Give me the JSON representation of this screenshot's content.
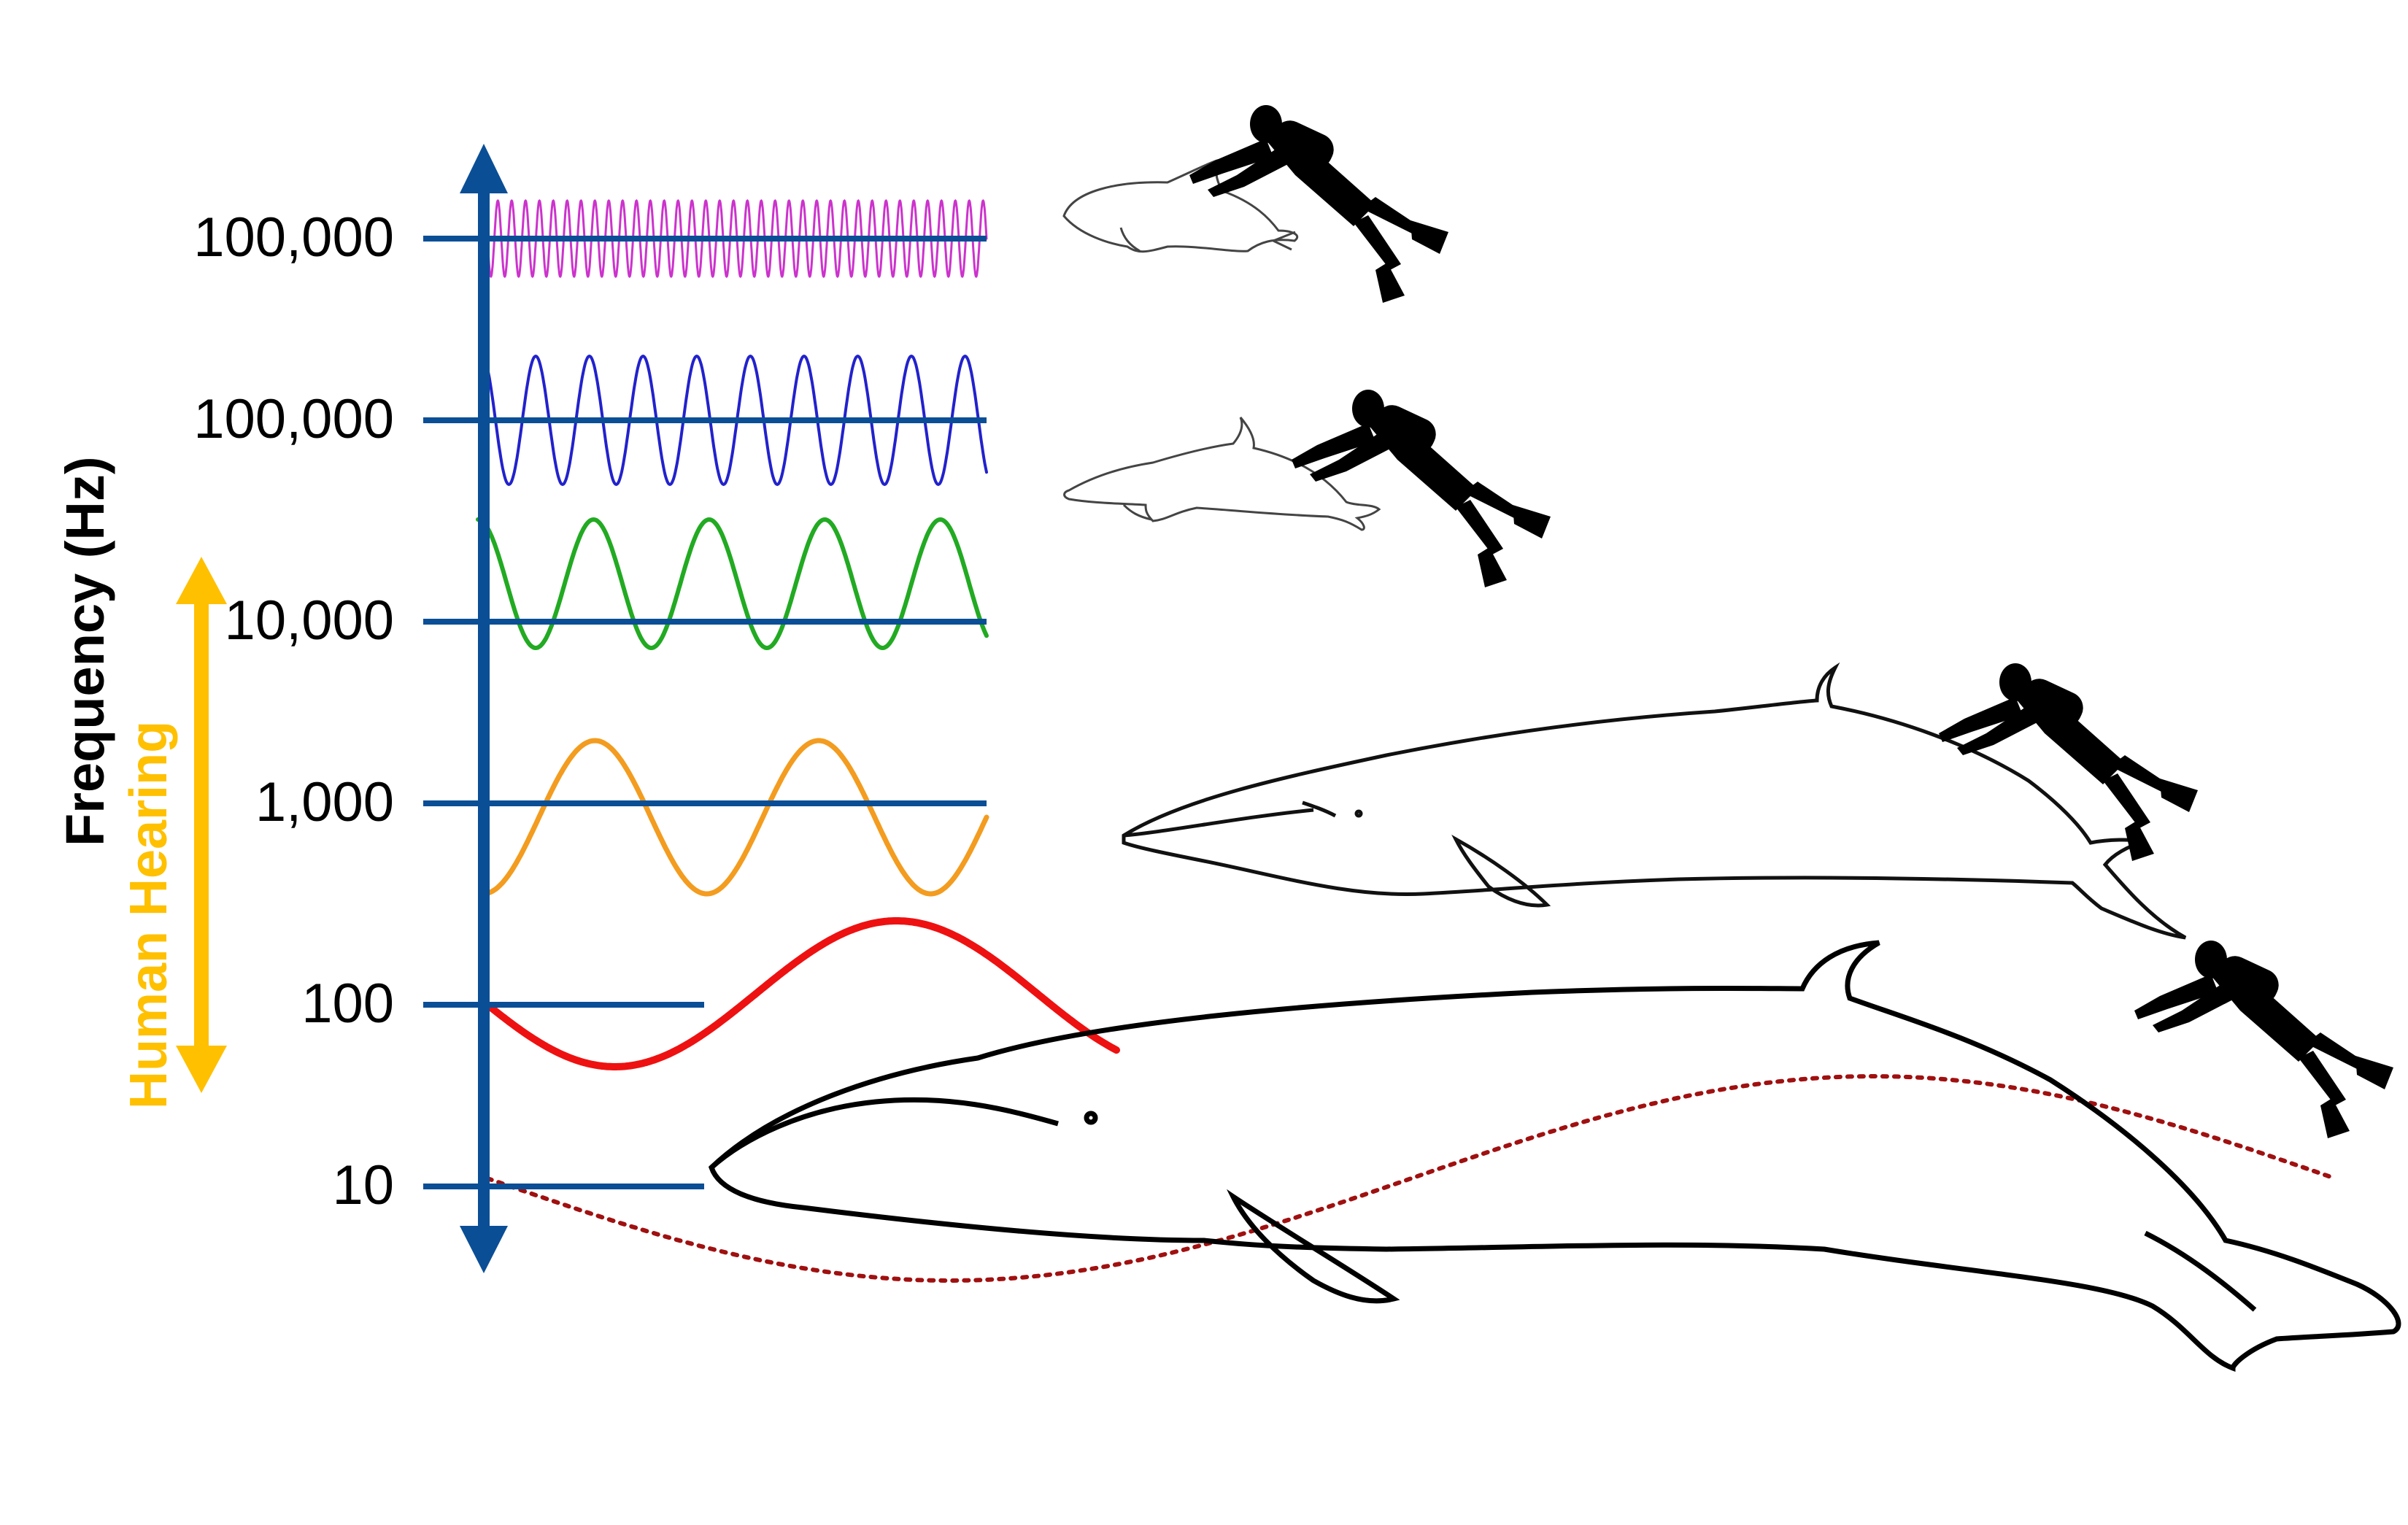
{
  "axis": {
    "title": "Frequency (Hz)",
    "tick_labels": [
      "100,000",
      "100,000",
      "10,000",
      "1,000",
      "100",
      "10"
    ],
    "color": "#0A4E96"
  },
  "human_hearing": {
    "label": "Human Hearing",
    "color": "#FFC000"
  },
  "waves": [
    {
      "name": "wave-100000-high",
      "color": "#CC33CC",
      "cycles": 36
    },
    {
      "name": "wave-100000",
      "color": "#2222CC",
      "cycles": 9.3
    },
    {
      "name": "wave-10000",
      "color": "#22AA22",
      "cycles": 4.4
    },
    {
      "name": "wave-1000",
      "color": "#F39C1F",
      "cycles": 2.25
    },
    {
      "name": "wave-100",
      "color": "#EE1111",
      "cycles": 1
    },
    {
      "name": "wave-10",
      "color": "#A01010",
      "cycles": 1
    }
  ],
  "icons": [
    "porpoise-icon",
    "dolphin-icon",
    "minke-whale-icon",
    "blue-whale-icon",
    "diver-icon"
  ]
}
